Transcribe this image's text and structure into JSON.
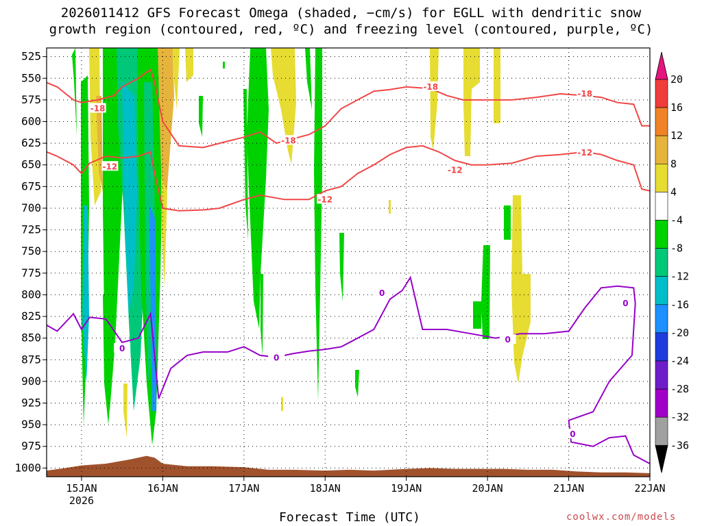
{
  "chart_data": {
    "type": "heatmap",
    "title": "2026011412 GFS Forecast Omega (shaded, −cm/s) for EGLL with dendritic snow",
    "subtitle": "growth region (contoured, red, ºC) and freezing level (contoured, purple, ºC)",
    "xlabel": "Forecast Time (UTC)",
    "credit": "coolwx.com/models",
    "x_tick_labels": [
      "15JAN",
      "16JAN",
      "17JAN",
      "18JAN",
      "19JAN",
      "20JAN",
      "21JAN",
      "22JAN"
    ],
    "x_tick_year": "2026",
    "y_tick_labels": [
      "525",
      "550",
      "575",
      "600",
      "625",
      "650",
      "675",
      "700",
      "725",
      "750",
      "775",
      "800",
      "825",
      "850",
      "875",
      "900",
      "925",
      "950",
      "975",
      "1000"
    ],
    "ylim": [
      1010,
      515
    ],
    "xlim": [
      -0.43,
      7.0
    ],
    "colorbar_labels": [
      "20",
      "16",
      "12",
      "8",
      "4",
      "-4",
      "-8",
      "-12",
      "-16",
      "-20",
      "-24",
      "-28",
      "-32",
      "-36"
    ],
    "colorbar_colors": [
      "#f03c3c",
      "#f08228",
      "#e6b43c",
      "#e6dc32",
      "#ffffff",
      "#00d200",
      "#00c878",
      "#00bec8",
      "#1e90ff",
      "#1e3cdc",
      "#6e1ec8",
      "#a000c8",
      "#a0a0a0"
    ],
    "colorbar_ends": {
      "top": "#e6147f",
      "bottom": "#000000"
    },
    "dgz_minus18": {
      "label": "-18",
      "color": "#f04646",
      "x": [
        -0.43,
        -0.3,
        -0.1,
        0.0,
        0.2,
        0.4,
        0.5,
        0.7,
        0.85,
        0.9,
        1.0,
        1.2,
        1.5,
        1.7,
        2.0,
        2.2,
        2.4,
        2.6,
        2.8,
        3.0,
        3.2,
        3.4,
        3.6,
        3.8,
        4.0,
        4.3,
        4.5,
        4.7,
        5.0,
        5.3,
        5.6,
        5.9,
        6.2,
        6.4,
        6.6,
        6.8,
        6.9,
        7.0
      ],
      "y": [
        555,
        560,
        575,
        578,
        575,
        570,
        560,
        550,
        540,
        555,
        600,
        628,
        630,
        625,
        618,
        612,
        625,
        620,
        615,
        605,
        585,
        575,
        565,
        563,
        560,
        562,
        570,
        575,
        575,
        575,
        572,
        568,
        570,
        572,
        578,
        580,
        605,
        605
      ]
    },
    "dgz_minus12": {
      "label": "-12",
      "color": "#f04646",
      "x": [
        -0.43,
        -0.3,
        -0.1,
        0.0,
        0.1,
        0.3,
        0.5,
        0.7,
        0.85,
        0.9,
        1.0,
        1.2,
        1.5,
        1.7,
        2.0,
        2.2,
        2.5,
        2.8,
        3.0,
        3.2,
        3.4,
        3.6,
        3.8,
        4.0,
        4.2,
        4.4,
        4.6,
        4.8,
        5.0,
        5.3,
        5.6,
        5.9,
        6.2,
        6.4,
        6.6,
        6.8,
        6.9,
        7.0
      ],
      "y": [
        635,
        640,
        650,
        660,
        648,
        640,
        642,
        640,
        635,
        660,
        700,
        703,
        702,
        700,
        690,
        685,
        690,
        690,
        680,
        675,
        660,
        650,
        638,
        630,
        628,
        635,
        645,
        650,
        650,
        648,
        640,
        638,
        635,
        638,
        645,
        650,
        678,
        680
      ]
    },
    "freezing_level": {
      "label": "0",
      "color": "#9600c8",
      "x": [
        -0.43,
        -0.3,
        -0.1,
        0.0,
        0.1,
        0.3,
        0.5,
        0.7,
        0.85,
        0.9,
        0.95,
        1.1,
        1.3,
        1.5,
        1.8,
        2.0,
        2.2,
        2.4,
        2.6,
        2.8,
        3.0,
        3.2,
        3.4,
        3.6,
        3.8,
        3.95,
        4.05,
        4.2,
        4.5,
        4.8,
        5.1,
        5.4,
        5.7,
        6.0,
        6.2,
        6.4,
        6.6,
        6.8,
        6.82,
        6.78,
        6.5,
        6.3,
        6.0,
        6.03,
        6.3,
        6.5,
        6.7,
        6.8,
        6.9,
        7.0
      ],
      "y": [
        835,
        842,
        822,
        840,
        826,
        828,
        855,
        850,
        822,
        870,
        920,
        885,
        870,
        866,
        866,
        860,
        870,
        872,
        868,
        865,
        863,
        860,
        850,
        840,
        805,
        795,
        780,
        840,
        840,
        845,
        850,
        845,
        845,
        842,
        815,
        792,
        790,
        792,
        810,
        870,
        900,
        935,
        945,
        970,
        975,
        965,
        963,
        985,
        990,
        995
      ]
    },
    "terrain": {
      "color": "#a0522d",
      "x": [
        -0.43,
        -0.2,
        0.0,
        0.3,
        0.6,
        0.8,
        0.9,
        1.0,
        1.3,
        1.6,
        2.0,
        2.3,
        2.6,
        3.0,
        3.3,
        3.6,
        4.0,
        4.3,
        4.6,
        4.9,
        5.2,
        5.5,
        5.8,
        6.1,
        6.4,
        6.7,
        7.0
      ],
      "y": [
        1003,
        1000,
        997,
        995,
        990,
        986,
        988,
        995,
        998,
        998,
        999,
        1002,
        1002,
        1003,
        1002,
        1003,
        1001,
        1000,
        1001,
        1001,
        1001,
        1002,
        1002,
        1004,
        1005,
        1005,
        1006
      ]
    }
  }
}
